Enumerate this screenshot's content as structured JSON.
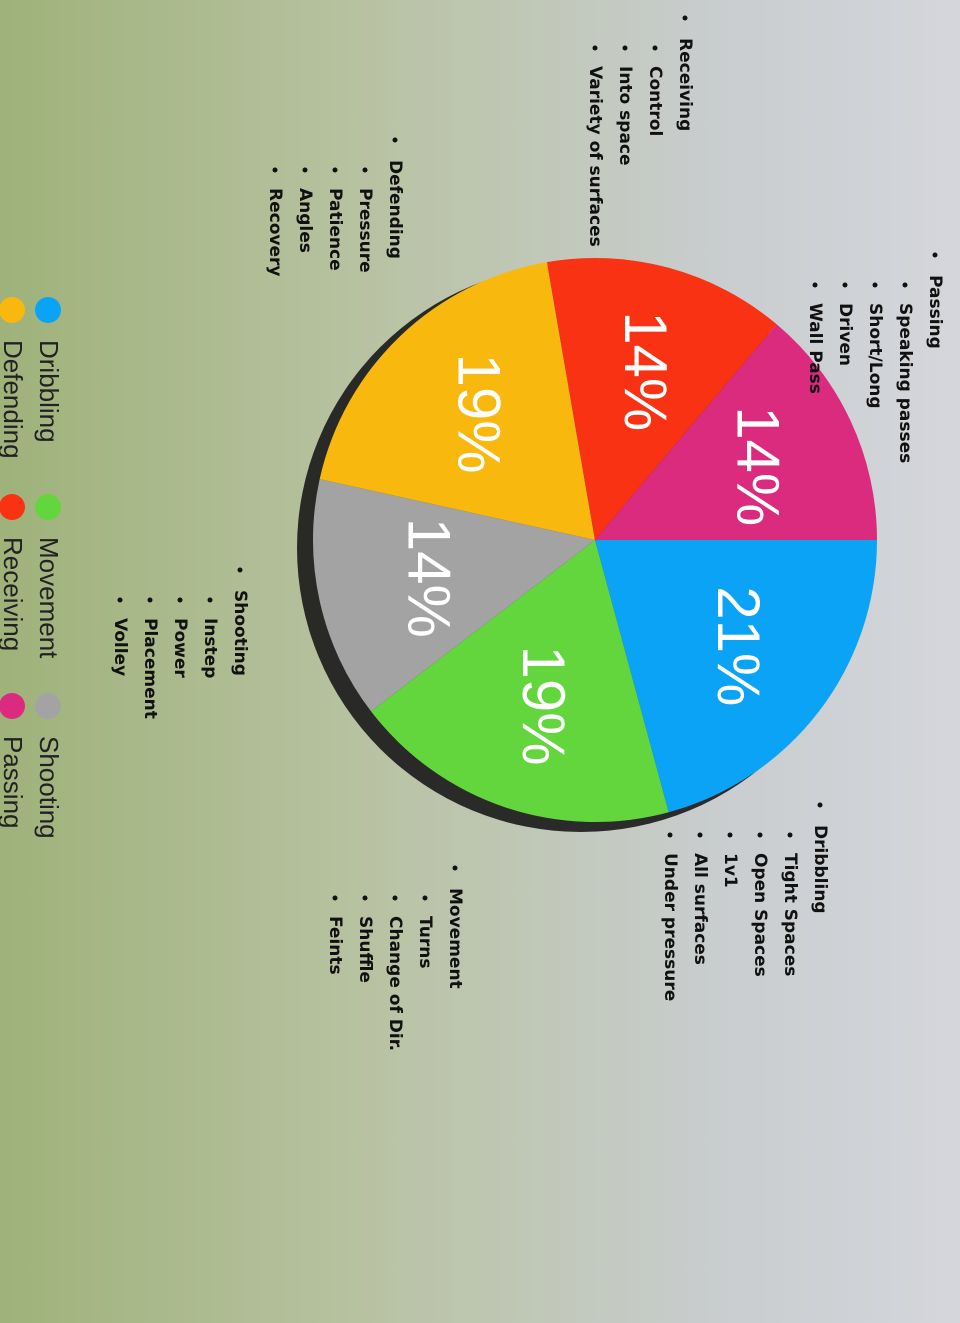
{
  "chart_data": {
    "type": "pie",
    "categories": [
      "Dribbling",
      "Movement",
      "Shooting",
      "Defending",
      "Receiving",
      "Passing"
    ],
    "values": [
      21,
      19,
      14,
      19,
      14,
      14
    ],
    "value_labels": [
      "21%",
      "19%",
      "14%",
      "19%",
      "14%",
      "14%"
    ],
    "colors": [
      "#0ba3f6",
      "#62d63c",
      "#a3a3a3",
      "#f8b80e",
      "#f83212",
      "#db2b7f"
    ],
    "legend": true
  },
  "topics": [
    {
      "title": "Passing",
      "items": [
        "Speaking passes",
        "Short/Long",
        "Driven",
        "Wall Pass"
      ]
    },
    {
      "title": "Receiving",
      "items": [
        "Control",
        "Into space",
        "Variety of surfaces"
      ]
    },
    {
      "title": "Defending",
      "items": [
        "Pressure",
        "Patience",
        "Angles",
        "Recovery"
      ]
    },
    {
      "title": "Shooting",
      "items": [
        "Instep",
        "Power",
        "Placement",
        "Volley"
      ]
    },
    {
      "title": "Movement",
      "items": [
        "Turns",
        "Change of Dir.",
        "Shuffle",
        "Feints"
      ]
    },
    {
      "title": "Dribbling",
      "items": [
        "Tight Spaces",
        "Open Spaces",
        "1v1",
        "All surfaces",
        "Under pressure"
      ]
    }
  ]
}
